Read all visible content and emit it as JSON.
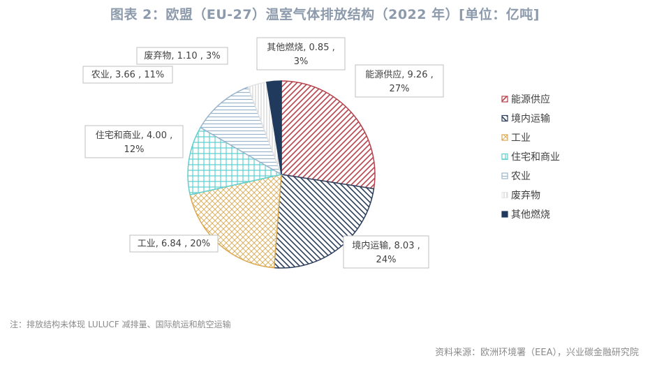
{
  "chart_data": {
    "type": "pie",
    "title": "图表 2：欧盟（EU-27）温室气体排放结构（2022 年）[单位：亿吨]",
    "unit": "亿吨",
    "legend_position": "right",
    "slices": [
      {
        "name": "能源供应",
        "value": 9.26,
        "percent": "27%",
        "color": "#b7414b",
        "pattern": "diag-right",
        "label_line1": "能源供应, 9.26 ,",
        "label_line2": "27%"
      },
      {
        "name": "境内运输",
        "value": 8.03,
        "percent": "24%",
        "color": "#2b3e5c",
        "pattern": "diag-left",
        "label_line1": "境内运输, 8.03 ,",
        "label_line2": "24%"
      },
      {
        "name": "工业",
        "value": 6.84,
        "percent": "20%",
        "color": "#dba850",
        "pattern": "crosshatch",
        "label_line1": "工业, 6.84 , 20%",
        "label_line2": ""
      },
      {
        "name": "住宅和商业",
        "value": 4.0,
        "percent": "12%",
        "color": "#5fcfcf",
        "pattern": "grid",
        "label_line1": "住宅和商业, 4.00 ,",
        "label_line2": "12%"
      },
      {
        "name": "农业",
        "value": 3.66,
        "percent": "11%",
        "color": "#9ab4cc",
        "pattern": "horizontal",
        "label_line1": "农业, 3.66 , 11%",
        "label_line2": ""
      },
      {
        "name": "废弃物",
        "value": 1.1,
        "percent": "3%",
        "color": "#c8c8c8",
        "pattern": "vertical-light",
        "label_line1": "废弃物, 1.10 , 3%",
        "label_line2": ""
      },
      {
        "name": "其他燃烧",
        "value": 0.85,
        "percent": "3%",
        "color": "#1f3a5c",
        "pattern": "solid",
        "label_line1": "其他燃烧, 0.85 ,",
        "label_line2": "3%"
      }
    ]
  },
  "footnote": "注：排放结构未体现 LULUCF 减排量、国际航运和航空运输",
  "source": "资料来源：欧洲环境署（EEA），兴业碳金融研究院"
}
